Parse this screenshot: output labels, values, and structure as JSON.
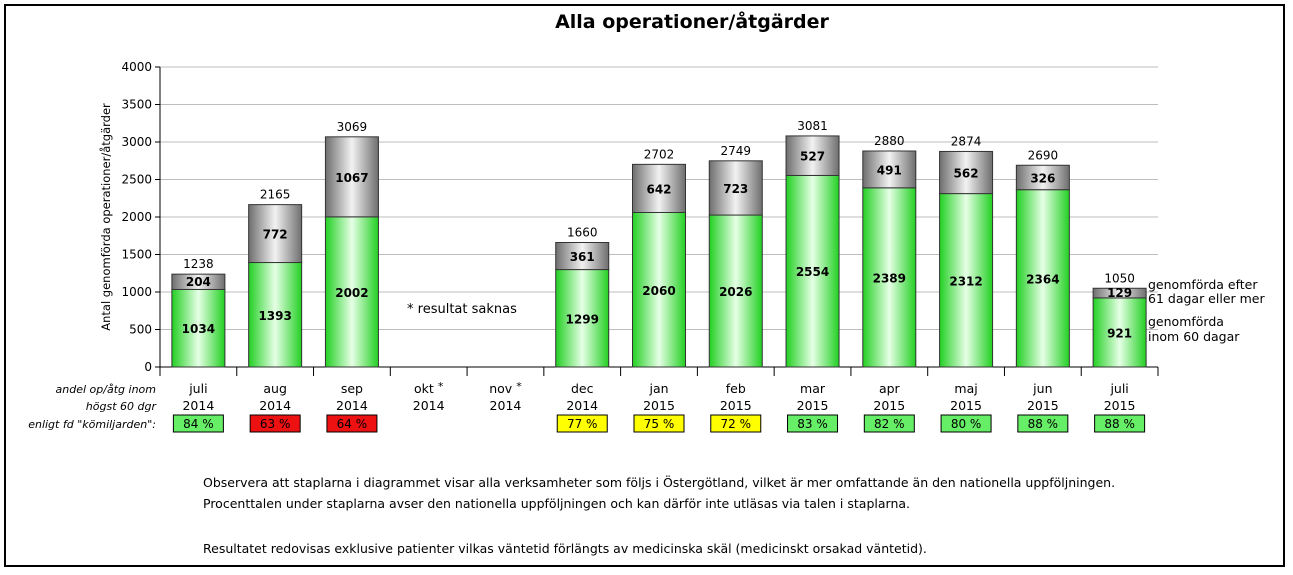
{
  "chart_data": {
    "type": "bar",
    "stacked": true,
    "title": "Alla operationer/åtgärder",
    "ylabel": "Antal genomförda operationer/åtgärder",
    "ylim": [
      0,
      4000
    ],
    "yticks": [
      "0",
      "500",
      "1000",
      "1500",
      "2000",
      "2500",
      "3000",
      "3500",
      "4000"
    ],
    "ytick_values": [
      0,
      500,
      1000,
      1500,
      2000,
      2500,
      3000,
      3500,
      4000
    ],
    "grid": true,
    "categories": [
      {
        "month": "juli",
        "year": "2014",
        "marker": ""
      },
      {
        "month": "aug",
        "year": "2014",
        "marker": ""
      },
      {
        "month": "sep",
        "year": "2014",
        "marker": ""
      },
      {
        "month": "okt",
        "year": "2014",
        "marker": "*"
      },
      {
        "month": "nov",
        "year": "2014",
        "marker": "*"
      },
      {
        "month": "dec",
        "year": "2014",
        "marker": ""
      },
      {
        "month": "jan",
        "year": "2015",
        "marker": ""
      },
      {
        "month": "feb",
        "year": "2015",
        "marker": ""
      },
      {
        "month": "mar",
        "year": "2015",
        "marker": ""
      },
      {
        "month": "apr",
        "year": "2015",
        "marker": ""
      },
      {
        "month": "maj",
        "year": "2015",
        "marker": ""
      },
      {
        "month": "jun",
        "year": "2015",
        "marker": ""
      },
      {
        "month": "juli",
        "year": "2015",
        "marker": ""
      }
    ],
    "series": [
      {
        "name": "genomförda inom 60 dagar",
        "label_lines": [
          "genomförda",
          "inom 60 dagar"
        ],
        "color": "#22dd22",
        "values": [
          1034,
          1393,
          2002,
          null,
          null,
          1299,
          2060,
          2026,
          2554,
          2389,
          2312,
          2364,
          921
        ]
      },
      {
        "name": "genomförda efter 61 dagar eller mer",
        "label_lines": [
          "genomförda efter",
          "61 dagar eller mer"
        ],
        "color": "#888888",
        "values": [
          204,
          772,
          1067,
          null,
          null,
          361,
          642,
          723,
          527,
          491,
          562,
          326,
          129
        ]
      }
    ],
    "totals": [
      1238,
      2165,
      3069,
      null,
      null,
      1660,
      2702,
      2749,
      3081,
      2880,
      2874,
      2690,
      1050
    ],
    "missing_note": "*  resultat saknas",
    "percent_row": {
      "label_lines": [
        "andel op/åtg inom",
        "högst 60 dgr",
        "enligt fd \"kömiljarden\":"
      ],
      "values": [
        "84 %",
        "63 %",
        "64 %",
        null,
        null,
        "77 %",
        "75 %",
        "72 %",
        "83 %",
        "82 %",
        "80 %",
        "88 %",
        "88 %"
      ],
      "colors": [
        "#66ee66",
        "#ee1111",
        "#ee1111",
        null,
        null,
        "#ffff00",
        "#ffff00",
        "#ffff00",
        "#66ee66",
        "#66ee66",
        "#66ee66",
        "#66ee66",
        "#66ee66"
      ]
    }
  },
  "notes": [
    "Observera att staplarna i diagrammet visar alla verksamheter som följs i Östergötland, vilket är mer omfattande än den nationella uppföljningen.",
    "Procenttalen under staplarna avser den nationella uppföljningen och kan därför inte utläsas via talen i staplarna.",
    "Resultatet redovisas exklusive patienter vilkas väntetid förlängts av medicinska skäl (medicinskt  orsakad väntetid)."
  ]
}
